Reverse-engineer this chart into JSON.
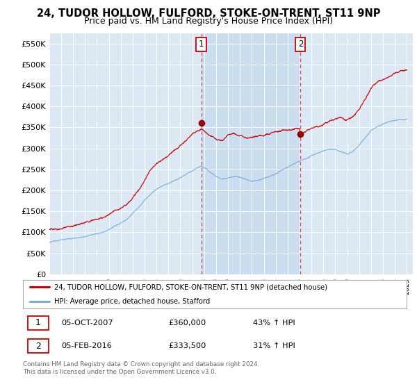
{
  "title": "24, TUDOR HOLLOW, FULFORD, STOKE-ON-TRENT, ST11 9NP",
  "subtitle": "Price paid vs. HM Land Registry's House Price Index (HPI)",
  "ylabel_ticks": [
    "£0",
    "£50K",
    "£100K",
    "£150K",
    "£200K",
    "£250K",
    "£300K",
    "£350K",
    "£400K",
    "£450K",
    "£500K",
    "£550K"
  ],
  "ytick_values": [
    0,
    50000,
    100000,
    150000,
    200000,
    250000,
    300000,
    350000,
    400000,
    450000,
    500000,
    550000
  ],
  "ylim": [
    0,
    575000
  ],
  "xlim_start": 1995.0,
  "xlim_end": 2025.5,
  "background_color": "#dce9f5",
  "shade_color": "#c8dcf0",
  "red_line_color": "#cc0000",
  "blue_line_color": "#7aaddc",
  "marker1_x": 2007.75,
  "marker1_y": 360000,
  "marker2_x": 2016.08,
  "marker2_y": 333500,
  "legend_red_label": "24, TUDOR HOLLOW, FULFORD, STOKE-ON-TRENT, ST11 9NP (detached house)",
  "legend_blue_label": "HPI: Average price, detached house, Stafford",
  "table_row1": [
    "1",
    "05-OCT-2007",
    "£360,000",
    "43% ↑ HPI"
  ],
  "table_row2": [
    "2",
    "05-FEB-2016",
    "£333,500",
    "31% ↑ HPI"
  ],
  "footer_text": "Contains HM Land Registry data © Crown copyright and database right 2024.\nThis data is licensed under the Open Government Licence v3.0."
}
